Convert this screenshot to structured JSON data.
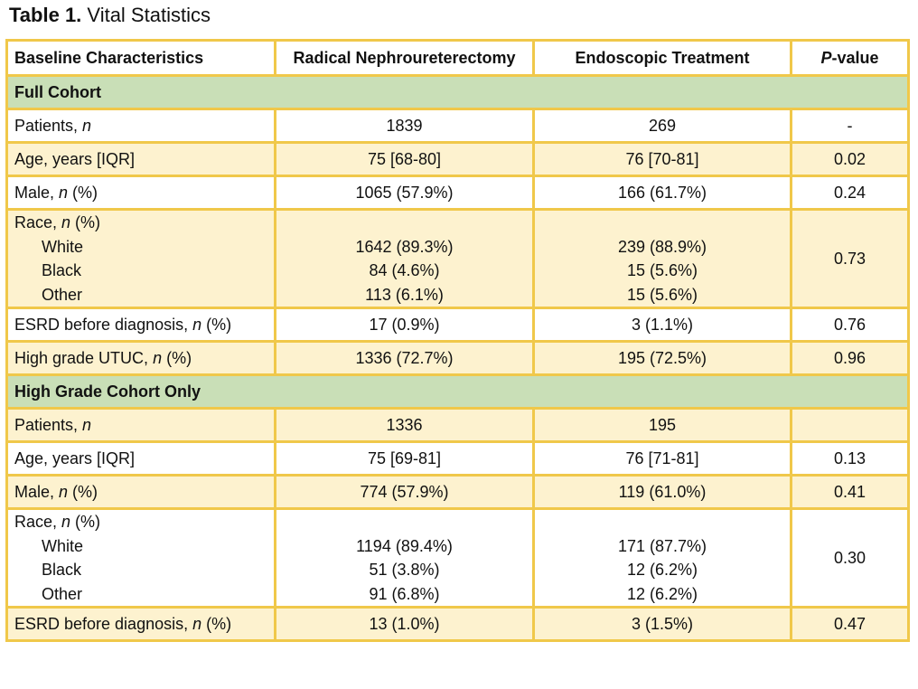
{
  "caption": {
    "label": "Table 1.",
    "text": "Vital Statistics"
  },
  "columns": [
    "Baseline Characteristics",
    "Radical Nephroureterectomy",
    "Endoscopic Treatment",
    "-value"
  ],
  "pvalue_prefix": "P",
  "sections": [
    {
      "title": "Full Cohort",
      "patients": {
        "label": "Patients, ",
        "unit": "n",
        "rnu": "1839",
        "et": "269",
        "p": "-"
      },
      "age": {
        "label": "Age, years [IQR]",
        "rnu": "75 [68-80]",
        "et": "76 [70-81]",
        "p": "0.02"
      },
      "male": {
        "label": "Male, ",
        "unit": "n",
        "suffix": " (%)",
        "rnu": "1065 (57.9%)",
        "et": "166 (61.7%)",
        "p": "0.24"
      },
      "race": {
        "label": "Race, ",
        "unit": "n",
        "suffix": " (%)",
        "p": "0.73",
        "items": [
          {
            "label": "White",
            "rnu": "1642 (89.3%)",
            "et": "239 (88.9%)"
          },
          {
            "label": "Black",
            "rnu": "84 (4.6%)",
            "et": "15 (5.6%)"
          },
          {
            "label": "Other",
            "rnu": "113 (6.1%)",
            "et": "15 (5.6%)"
          }
        ]
      },
      "esrd": {
        "label": "ESRD before diagnosis, ",
        "unit": "n",
        "suffix": " (%)",
        "rnu": "17 (0.9%)",
        "et": "3 (1.1%)",
        "p": "0.76"
      },
      "highgrade": {
        "label": "High grade UTUC, ",
        "unit": "n",
        "suffix": " (%)",
        "rnu": "1336 (72.7%)",
        "et": "195 (72.5%)",
        "p": "0.96"
      }
    },
    {
      "title": "High Grade Cohort Only",
      "patients": {
        "label": "Patients, ",
        "unit": "n",
        "rnu": "1336",
        "et": "195",
        "p": ""
      },
      "age": {
        "label": "Age, years [IQR]",
        "rnu": "75 [69-81]",
        "et": "76 [71-81]",
        "p": "0.13"
      },
      "male": {
        "label": "Male, ",
        "unit": "n",
        "suffix": " (%)",
        "rnu": "774 (57.9%)",
        "et": "119 (61.0%)",
        "p": "0.41"
      },
      "race": {
        "label": "Race, ",
        "unit": "n",
        "suffix": " (%)",
        "p": "0.30",
        "items": [
          {
            "label": "White",
            "rnu": "1194 (89.4%)",
            "et": "171 (87.7%)"
          },
          {
            "label": "Black",
            "rnu": "51 (3.8%)",
            "et": "12 (6.2%)"
          },
          {
            "label": "Other",
            "rnu": "91 (6.8%)",
            "et": "12 (6.2%)"
          }
        ]
      },
      "esrd": {
        "label": "ESRD before diagnosis, ",
        "unit": "n",
        "suffix": " (%)",
        "rnu": "13 (1.0%)",
        "et": "3 (1.5%)",
        "p": "0.47"
      }
    }
  ]
}
